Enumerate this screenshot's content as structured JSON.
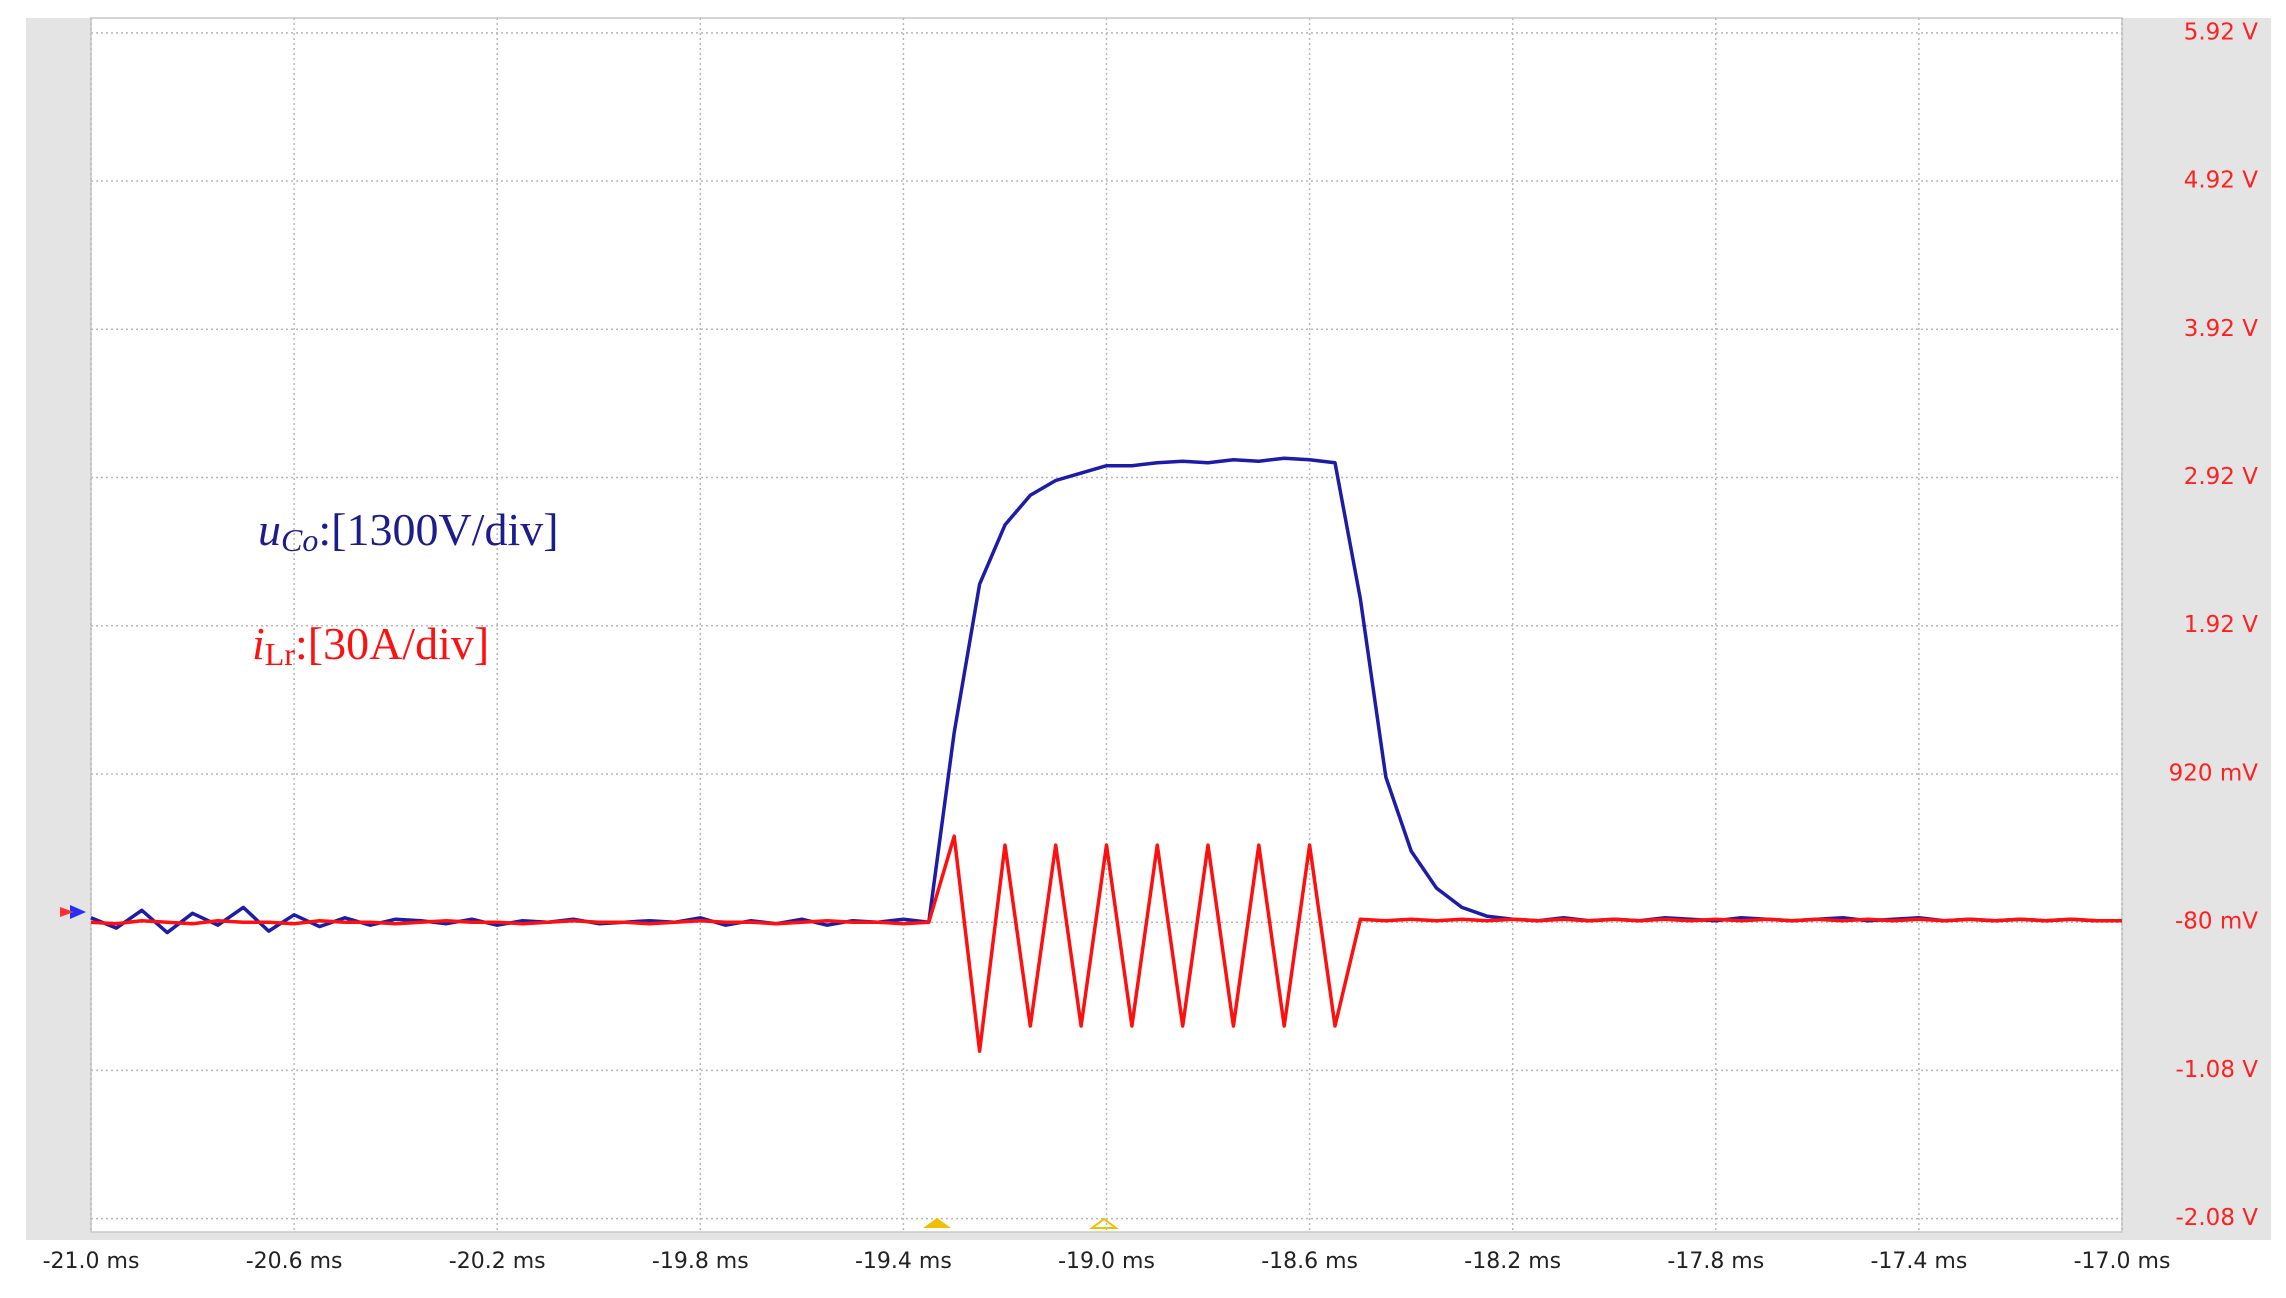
{
  "chart_data": {
    "type": "line",
    "annotations": [
      {
        "symbol": "u",
        "subscript": "Co",
        "scale": ":[1300V/div]",
        "color": "#1c1c8c"
      },
      {
        "symbol": "i",
        "subscript": "Lr",
        "scale": ":[30A/div]",
        "color": "#ff1010"
      }
    ],
    "xlim": [
      -21.0,
      -17.0
    ],
    "xticks": [
      {
        "value": -21.0,
        "label": "-21.0 ms"
      },
      {
        "value": -20.6,
        "label": "-20.6 ms"
      },
      {
        "value": -20.2,
        "label": "-20.2 ms"
      },
      {
        "value": -19.8,
        "label": "-19.8 ms"
      },
      {
        "value": -19.4,
        "label": "-19.4 ms"
      },
      {
        "value": -19.0,
        "label": "-19.0 ms"
      },
      {
        "value": -18.6,
        "label": "-18.6 ms"
      },
      {
        "value": -18.2,
        "label": "-18.2 ms"
      },
      {
        "value": -17.8,
        "label": "-17.8 ms"
      },
      {
        "value": -17.4,
        "label": "-17.4 ms"
      },
      {
        "value": -17.0,
        "label": "-17.0 ms"
      }
    ],
    "ylim": [
      -2.17,
      6.02
    ],
    "yticks": [
      {
        "value": 5.92,
        "label": "5.92 V"
      },
      {
        "value": 4.92,
        "label": "4.92 V"
      },
      {
        "value": 3.92,
        "label": "3.92 V"
      },
      {
        "value": 2.92,
        "label": "2.92 V"
      },
      {
        "value": 1.92,
        "label": "1.92 V"
      },
      {
        "value": 0.92,
        "label": "920 mV"
      },
      {
        "value": -0.08,
        "label": "-80 mV"
      },
      {
        "value": -1.08,
        "label": "-1.08 V"
      },
      {
        "value": -2.08,
        "label": "-2.08 V"
      }
    ],
    "grid": true,
    "x": [
      -21.0,
      -20.95,
      -20.9,
      -20.85,
      -20.8,
      -20.75,
      -20.7,
      -20.65,
      -20.6,
      -20.55,
      -20.5,
      -20.45,
      -20.4,
      -20.35,
      -20.3,
      -20.25,
      -20.2,
      -20.15,
      -20.1,
      -20.05,
      -20.0,
      -19.95,
      -19.9,
      -19.85,
      -19.8,
      -19.75,
      -19.7,
      -19.65,
      -19.6,
      -19.55,
      -19.5,
      -19.45,
      -19.4,
      -19.35,
      -19.3,
      -19.25,
      -19.2,
      -19.15,
      -19.1,
      -19.05,
      -19.0,
      -18.95,
      -18.9,
      -18.85,
      -18.8,
      -18.75,
      -18.7,
      -18.65,
      -18.6,
      -18.55,
      -18.5,
      -18.45,
      -18.4,
      -18.35,
      -18.3,
      -18.25,
      -18.2,
      -18.15,
      -18.1,
      -18.05,
      -18.0,
      -17.95,
      -17.9,
      -17.85,
      -17.8,
      -17.75,
      -17.7,
      -17.65,
      -17.6,
      -17.55,
      -17.5,
      -17.45,
      -17.4,
      -17.35,
      -17.3,
      -17.25,
      -17.2,
      -17.15,
      -17.1,
      -17.05,
      -17.0
    ],
    "series": [
      {
        "color": "#1c1ca8",
        "values": [
          -0.05,
          -0.12,
          0.0,
          -0.15,
          -0.02,
          -0.1,
          0.02,
          -0.14,
          -0.03,
          -0.11,
          -0.05,
          -0.1,
          -0.06,
          -0.07,
          -0.09,
          -0.06,
          -0.1,
          -0.07,
          -0.08,
          -0.06,
          -0.09,
          -0.08,
          -0.07,
          -0.08,
          -0.05,
          -0.1,
          -0.07,
          -0.09,
          -0.06,
          -0.1,
          -0.07,
          -0.08,
          -0.06,
          -0.08,
          1.2,
          2.2,
          2.6,
          2.8,
          2.9,
          2.95,
          3.0,
          3.0,
          3.02,
          3.03,
          3.02,
          3.04,
          3.03,
          3.05,
          3.04,
          3.02,
          2.1,
          0.9,
          0.4,
          0.15,
          0.02,
          -0.04,
          -0.06,
          -0.07,
          -0.05,
          -0.07,
          -0.06,
          -0.07,
          -0.05,
          -0.06,
          -0.07,
          -0.05,
          -0.06,
          -0.07,
          -0.06,
          -0.05,
          -0.07,
          -0.06,
          -0.05,
          -0.07,
          -0.06,
          -0.07,
          -0.06,
          -0.07,
          -0.06,
          -0.07,
          -0.07
        ]
      },
      {
        "color": "#ff1010",
        "values": [
          -0.08,
          -0.09,
          -0.07,
          -0.08,
          -0.09,
          -0.07,
          -0.08,
          -0.08,
          -0.09,
          -0.07,
          -0.08,
          -0.08,
          -0.09,
          -0.08,
          -0.07,
          -0.08,
          -0.08,
          -0.09,
          -0.08,
          -0.07,
          -0.08,
          -0.08,
          -0.09,
          -0.08,
          -0.07,
          -0.08,
          -0.08,
          -0.09,
          -0.08,
          -0.07,
          -0.08,
          -0.08,
          -0.09,
          -0.08,
          0.5,
          -0.95,
          0.44,
          -0.78,
          0.44,
          -0.78,
          0.44,
          -0.78,
          0.44,
          -0.78,
          0.44,
          -0.78,
          0.44,
          -0.78,
          0.44,
          -0.78,
          -0.06,
          -0.07,
          -0.06,
          -0.07,
          -0.06,
          -0.07,
          -0.06,
          -0.07,
          -0.06,
          -0.07,
          -0.06,
          -0.07,
          -0.06,
          -0.07,
          -0.06,
          -0.07,
          -0.06,
          -0.07,
          -0.06,
          -0.07,
          -0.06,
          -0.07,
          -0.06,
          -0.07,
          -0.06,
          -0.07,
          -0.06,
          -0.07,
          -0.06,
          -0.07,
          -0.07
        ]
      }
    ]
  }
}
